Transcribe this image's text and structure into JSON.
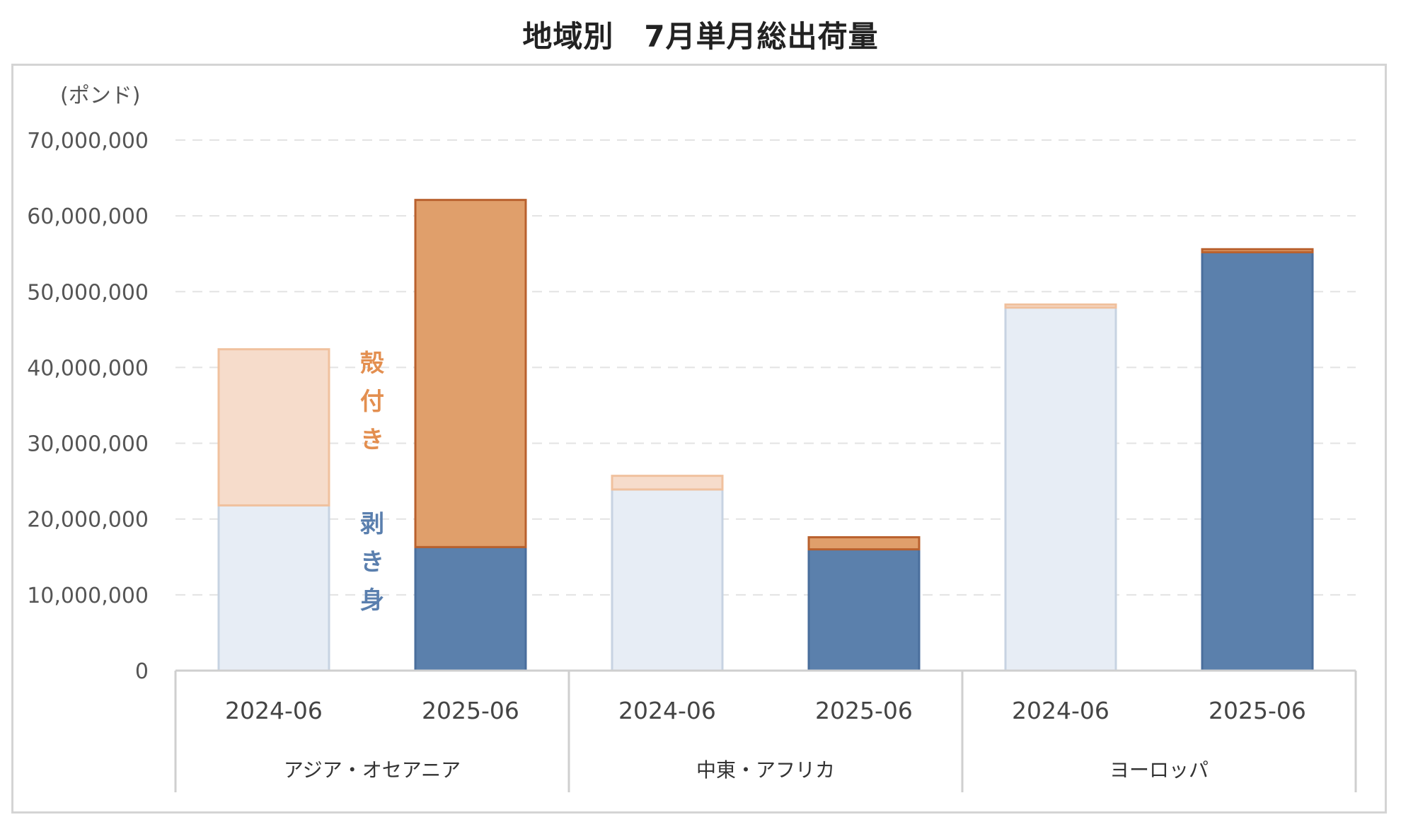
{
  "chart_data": {
    "type": "bar",
    "stacked": true,
    "title": "地域別　7月単月総出荷量",
    "unit_label": "(ポンド)",
    "ylim": [
      0,
      70000000
    ],
    "yticks": [
      0,
      10000000,
      20000000,
      30000000,
      40000000,
      50000000,
      60000000,
      70000000
    ],
    "ytick_labels": [
      "0",
      "10,000,000",
      "20,000,000",
      "30,000,000",
      "40,000,000",
      "50,000,000",
      "60,000,000",
      "70,000,000"
    ],
    "grid": true,
    "groups": [
      {
        "name": "アジア・オセアニア",
        "categories": [
          "2024-06",
          "2025-06"
        ]
      },
      {
        "name": "中東・アフリカ",
        "categories": [
          "2024-06",
          "2025-06"
        ]
      },
      {
        "name": "ヨーロッパ",
        "categories": [
          "2024-06",
          "2025-06"
        ]
      }
    ],
    "series": [
      {
        "name": "剥き身",
        "values": [
          21800000,
          16300000,
          23900000,
          16000000,
          47900000,
          55200000
        ]
      },
      {
        "name": "殻付き",
        "values": [
          20600000,
          45800000,
          1800000,
          1600000,
          400000,
          400000
        ]
      }
    ],
    "series_labels": {
      "shell": [
        "殻",
        "付",
        "き"
      ],
      "shucked": [
        "剥",
        "き",
        "身"
      ]
    },
    "colors": {
      "shucked_light": "#e7edf5",
      "shucked_light_border": "#c7d3e2",
      "shucked_dark": "#5b80ac",
      "shucked_dark_border": "#4a6e9c",
      "shell_light": "#f6dccb",
      "shell_light_border": "#f0c19e",
      "shell_dark": "#e09f6b",
      "shell_dark_border": "#b9612e",
      "label_shell": "#e38f50",
      "label_shucked": "#5a7fae",
      "grid": "#e3e3e3",
      "axis": "#cfcfcf"
    }
  }
}
